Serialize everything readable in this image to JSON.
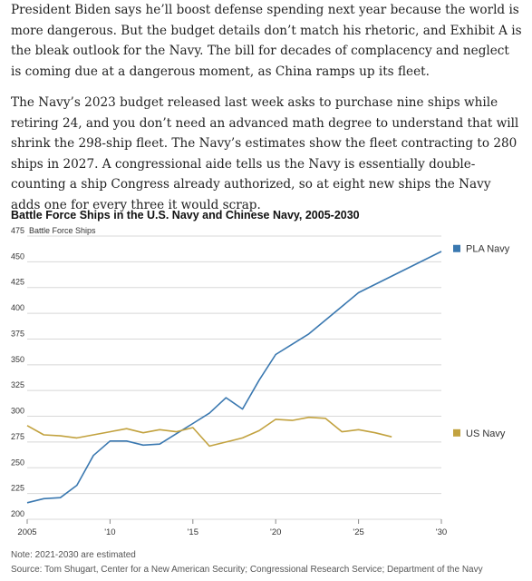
{
  "article": {
    "paragraphs": [
      "President Biden says he’ll boost defense spending next year because the world is more dangerous. But the budget details don’t match his rhetoric, and Exhibit A is the bleak outlook for the Navy. The bill for decades of complacency and neglect is coming due at a dangerous moment, as China ramps up its fleet.",
      "The Navy’s 2023 budget released last week asks to purchase nine ships while retiring 24, and you don’t need an advanced math degree to understand that will shrink the 298-ship fleet. The Navy’s estimates show the fleet contracting to 280 ships in 2027. A congressional aide tells us the Navy is essentially double-counting a ship Congress already authorized, so at eight new ships the Navy adds one for every three it would scrap."
    ]
  },
  "chart_data": {
    "type": "line",
    "title": "Battle Force Ships in the U.S. Navy and Chinese Navy, 2005-2030",
    "ylabel": "Battle Force Ships",
    "ylim": [
      200,
      475
    ],
    "xlim": [
      2005,
      2030
    ],
    "yticks": [
      200,
      225,
      250,
      275,
      300,
      325,
      350,
      375,
      400,
      425,
      450,
      475
    ],
    "xticks": [
      {
        "value": 2005,
        "label": "2005"
      },
      {
        "value": 2010,
        "label": "'10"
      },
      {
        "value": 2015,
        "label": "'15"
      },
      {
        "value": 2020,
        "label": "'20"
      },
      {
        "value": 2025,
        "label": "'25"
      },
      {
        "value": 2030,
        "label": "'30"
      }
    ],
    "grid": true,
    "legend": "right",
    "series": [
      {
        "name": "PLA Navy",
        "color": "#3a78b0",
        "points": [
          [
            2005,
            216
          ],
          [
            2006,
            220
          ],
          [
            2007,
            221
          ],
          [
            2008,
            233
          ],
          [
            2009,
            262
          ],
          [
            2010,
            276
          ],
          [
            2011,
            276
          ],
          [
            2012,
            272
          ],
          [
            2013,
            273
          ],
          [
            2014,
            283
          ],
          [
            2015,
            293
          ],
          [
            2016,
            303
          ],
          [
            2017,
            318
          ],
          [
            2018,
            307
          ],
          [
            2019,
            335
          ],
          [
            2020,
            360
          ],
          [
            2022,
            380
          ],
          [
            2025,
            420
          ],
          [
            2030,
            460
          ]
        ]
      },
      {
        "name": "US Navy",
        "color": "#c2a23f",
        "points": [
          [
            2005,
            291
          ],
          [
            2006,
            282
          ],
          [
            2007,
            281
          ],
          [
            2008,
            279
          ],
          [
            2009,
            282
          ],
          [
            2010,
            285
          ],
          [
            2011,
            288
          ],
          [
            2012,
            284
          ],
          [
            2013,
            287
          ],
          [
            2014,
            285
          ],
          [
            2015,
            289
          ],
          [
            2016,
            271
          ],
          [
            2017,
            275
          ],
          [
            2018,
            279
          ],
          [
            2019,
            286
          ],
          [
            2020,
            297
          ],
          [
            2021,
            296
          ],
          [
            2022,
            299
          ],
          [
            2023,
            298
          ],
          [
            2024,
            285
          ],
          [
            2025,
            287
          ],
          [
            2026,
            284
          ],
          [
            2027,
            280
          ]
        ]
      }
    ],
    "note": "Note: 2021-2030 are estimated",
    "source": "Source: Tom Shugart, Center for a New American Security; Congressional Research Service; Department of the Navy"
  }
}
